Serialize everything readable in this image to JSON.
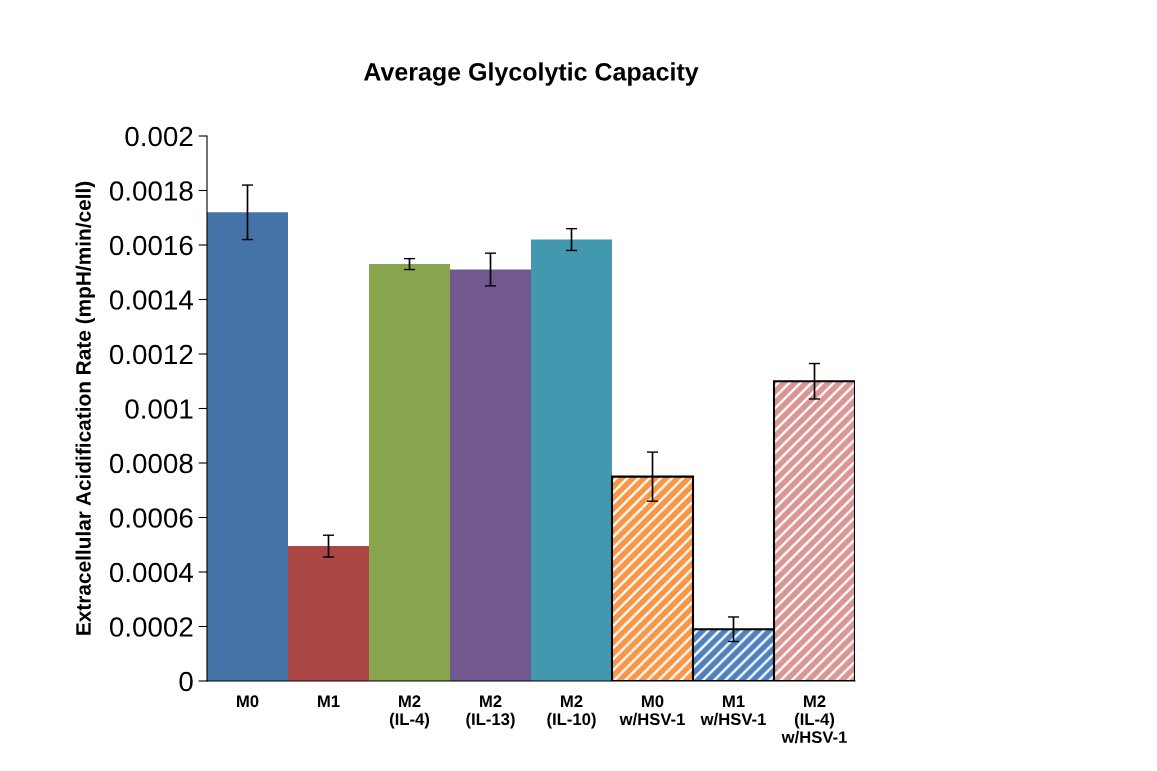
{
  "chart_data": {
    "type": "bar",
    "title": "Average Glycolytic Capacity",
    "ylabel": "Extracellular Acidification Rate (mpH/min/cell)",
    "categories": [
      "M0",
      "M1",
      "M2\n(IL-4)",
      "M2\n(IL-13)",
      "M2\n(IL-10)",
      "M0\nw/HSV-1",
      "M1\nw/HSV-1",
      "M2\n(IL-4)\nw/HSV-1"
    ],
    "series": [
      {
        "values": [
          0.00172,
          0.000495,
          0.00153,
          0.00151,
          0.00162,
          null,
          null,
          null
        ],
        "errors": [
          0.0001,
          4e-05,
          2e-05,
          6e-05,
          4e-05,
          null,
          null,
          null
        ],
        "colors": [
          "#4572a7",
          "#aa4643",
          "#89a54e",
          "#71588f",
          "#4198af",
          null,
          null,
          null
        ]
      },
      {
        "values": [
          null,
          null,
          null,
          null,
          null,
          0.00075,
          0.00019,
          0.0011
        ],
        "errors": [
          null,
          null,
          null,
          null,
          null,
          9e-05,
          4.5e-05,
          6.5e-05
        ],
        "colors": [
          null,
          null,
          null,
          null,
          null,
          "#f79646",
          "#4f81bd",
          "#d99694"
        ]
      }
    ],
    "ylim": [
      0,
      0.002
    ],
    "yticks": [
      0,
      0.0002,
      0.0004,
      0.0006,
      0.0008,
      0.001,
      0.0012,
      0.0014,
      0.0016,
      0.0018,
      0.002
    ],
    "grid": false,
    "legend": false
  }
}
